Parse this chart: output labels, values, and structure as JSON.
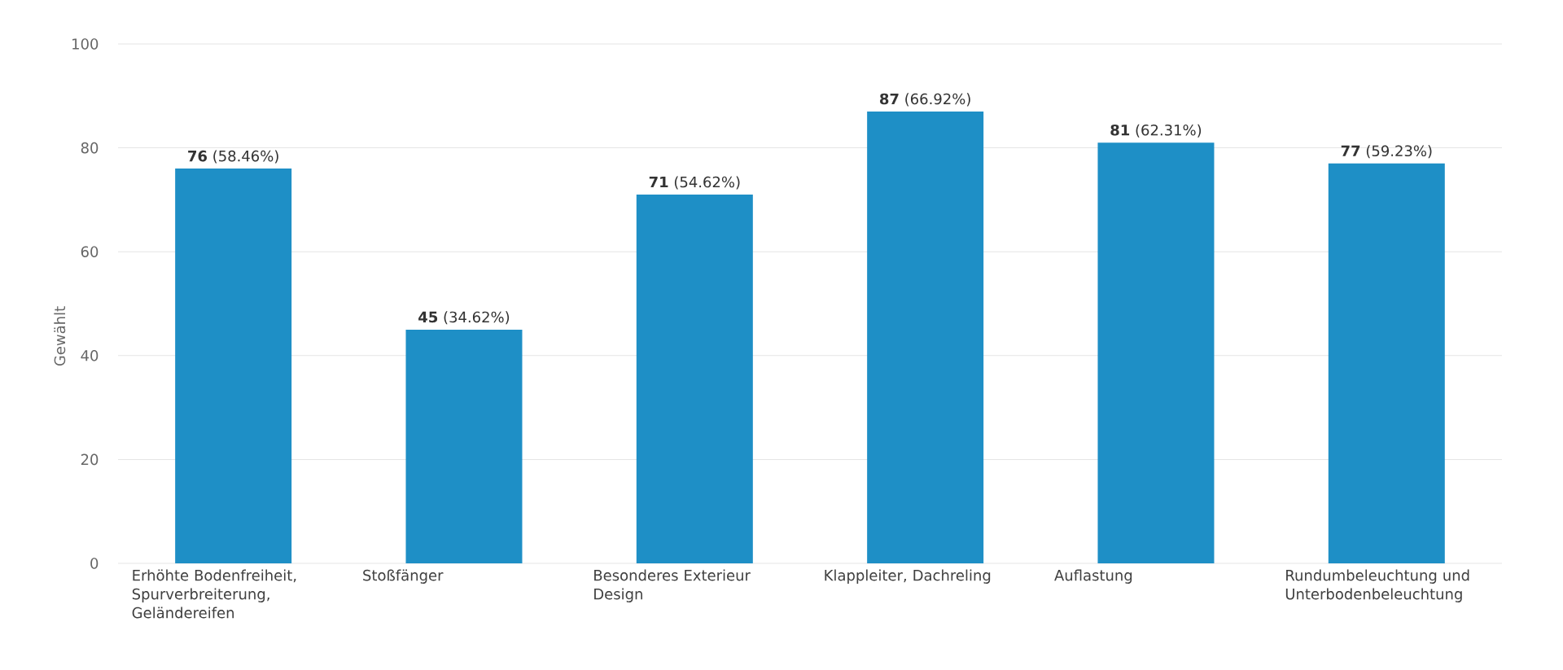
{
  "chart_data": {
    "type": "bar",
    "ylabel": "Gewählt",
    "categories": [
      "Erhöhte Bodenfreiheit, Spurverbreiterung, Geländereifen",
      "Stoßfänger",
      "Besonderes Exterieur Design",
      "Klappleiter, Dachreling",
      "Auflastung",
      "Rundumbeleuchtung und Unterbodenbeleuchtung"
    ],
    "values": [
      76,
      45,
      71,
      87,
      81,
      77
    ],
    "value_labels": [
      "**76** (58.46%)",
      "**45** (34.62%)",
      "**71** (54.62%)",
      "**87** (66.92%)",
      "**81** (62.31%)",
      "**77** (59.23%)"
    ],
    "color": "#1e8fc6",
    "ylim": [
      0,
      100
    ],
    "yticks": [
      0,
      20,
      40,
      60,
      80,
      100
    ],
    "grid": "y"
  }
}
